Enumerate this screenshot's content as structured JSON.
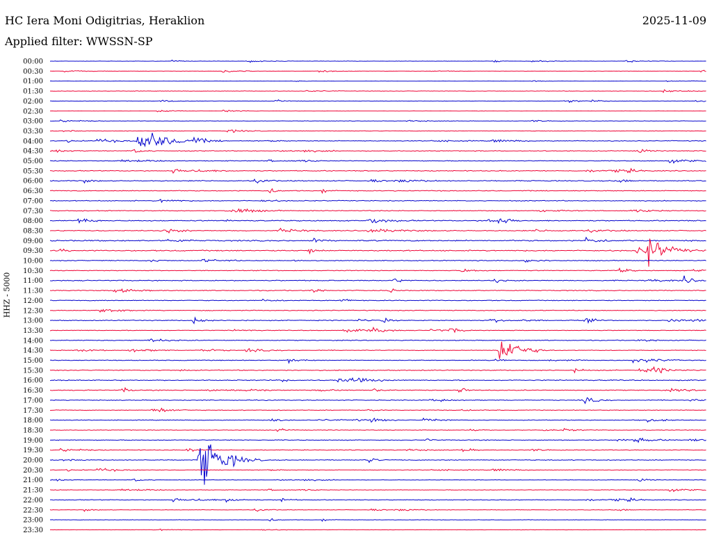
{
  "header": {
    "station": "HC Iera Moni Odigitrias, Heraklion",
    "date": "2025-11-09",
    "filter_label": "Applied filter: WWSSN-SP"
  },
  "chart_data": {
    "type": "helicorder",
    "ylabel": "HHZ - 5000",
    "line_minutes": 30,
    "trace_colors": [
      "#0000cc",
      "#ee0033"
    ],
    "rows": [
      "00:00",
      "00:30",
      "01:00",
      "01:30",
      "02:00",
      "02:30",
      "03:00",
      "03:30",
      "04:00",
      "04:30",
      "05:00",
      "05:30",
      "06:00",
      "06:30",
      "07:00",
      "07:30",
      "08:00",
      "08:30",
      "09:00",
      "09:30",
      "10:00",
      "10:30",
      "11:00",
      "11:30",
      "12:00",
      "12:30",
      "13:00",
      "13:30",
      "14:00",
      "14:30",
      "15:00",
      "15:30",
      "16:00",
      "16:30",
      "17:00",
      "17:30",
      "18:00",
      "18:30",
      "19:00",
      "19:30",
      "20:00",
      "20:30",
      "21:00",
      "21:30",
      "22:00",
      "22:30",
      "23:00",
      "23:30"
    ],
    "noise_level": [
      0.3,
      0.3,
      0.3,
      0.4,
      0.3,
      0.3,
      0.4,
      0.5,
      0.8,
      0.8,
      0.8,
      0.9,
      1.0,
      0.9,
      0.9,
      0.8,
      1.1,
      1.0,
      1.3,
      1.2,
      0.9,
      0.8,
      1.0,
      0.9,
      0.9,
      0.8,
      0.9,
      0.7,
      0.8,
      0.7,
      0.8,
      0.9,
      1.0,
      0.9,
      0.8,
      0.7,
      0.7,
      0.6,
      0.8,
      0.7,
      0.8,
      0.6,
      0.5,
      0.5,
      0.7,
      0.5,
      0.4,
      0.3
    ],
    "events": [
      {
        "row": "04:00",
        "minute": 4.0,
        "amplitude": 28,
        "duration_min": 4.5
      },
      {
        "row": "04:00",
        "minute": 6.5,
        "amplitude": 5,
        "duration_min": 2
      },
      {
        "row": "08:00",
        "minute": 14.5,
        "amplitude": 6,
        "duration_min": 3
      },
      {
        "row": "08:30",
        "minute": 14.5,
        "amplitude": 4,
        "duration_min": 5
      },
      {
        "row": "09:00",
        "minute": 12.0,
        "amplitude": 6,
        "duration_min": 1
      },
      {
        "row": "09:30",
        "minute": 27.2,
        "amplitude": 32,
        "duration_min": 3
      },
      {
        "row": "09:30",
        "minute": 11.8,
        "amplitude": 6,
        "duration_min": 1
      },
      {
        "row": "11:00",
        "minute": 28.9,
        "amplitude": 8,
        "duration_min": 1.5
      },
      {
        "row": "13:00",
        "minute": 6.5,
        "amplitude": 7,
        "duration_min": 1.5
      },
      {
        "row": "13:00",
        "minute": 15.2,
        "amplitude": 8,
        "duration_min": 0.8
      },
      {
        "row": "14:30",
        "minute": 20.5,
        "amplitude": 38,
        "duration_min": 2.5
      },
      {
        "row": "15:30",
        "minute": 27.5,
        "amplitude": 5,
        "duration_min": 3
      },
      {
        "row": "16:30",
        "minute": 18.7,
        "amplitude": 12,
        "duration_min": 0.8
      },
      {
        "row": "16:30",
        "minute": 3.3,
        "amplitude": 7,
        "duration_min": 0.8
      },
      {
        "row": "18:00",
        "minute": 10.0,
        "amplitude": 4,
        "duration_min": 1.5
      },
      {
        "row": "20:00",
        "minute": 6.8,
        "amplitude": 70,
        "duration_min": 3
      },
      {
        "row": "20:00",
        "minute": 14.5,
        "amplitude": 7,
        "duration_min": 1
      },
      {
        "row": "22:00",
        "minute": 8.0,
        "amplitude": 5,
        "duration_min": 2
      },
      {
        "row": "22:00",
        "minute": 10.5,
        "amplitude": 5,
        "duration_min": 1.2
      }
    ]
  }
}
